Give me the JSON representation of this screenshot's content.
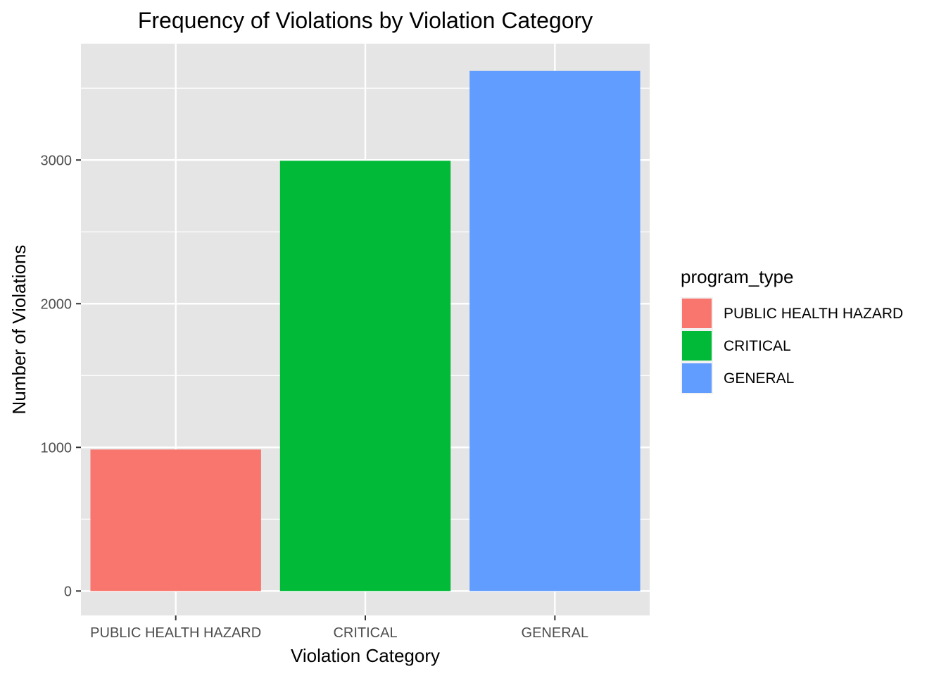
{
  "chart_data": {
    "type": "bar",
    "title": "Frequency of Violations by Violation Category",
    "xlabel": "Violation Category",
    "ylabel": "Number of Violations",
    "categories": [
      "PUBLIC HEALTH HAZARD",
      "CRITICAL",
      "GENERAL"
    ],
    "values": [
      985,
      2995,
      3620
    ],
    "colors": [
      "#F8766D",
      "#00BA38",
      "#619CFF"
    ],
    "ylim": [
      -170,
      3810
    ],
    "y_ticks": [
      0,
      1000,
      2000,
      3000
    ],
    "grid": true,
    "panel_background": "#E5E5E5",
    "legend": {
      "title": "program_type",
      "position": "right",
      "entries": [
        "PUBLIC HEALTH HAZARD",
        "CRITICAL",
        "GENERAL"
      ]
    }
  }
}
